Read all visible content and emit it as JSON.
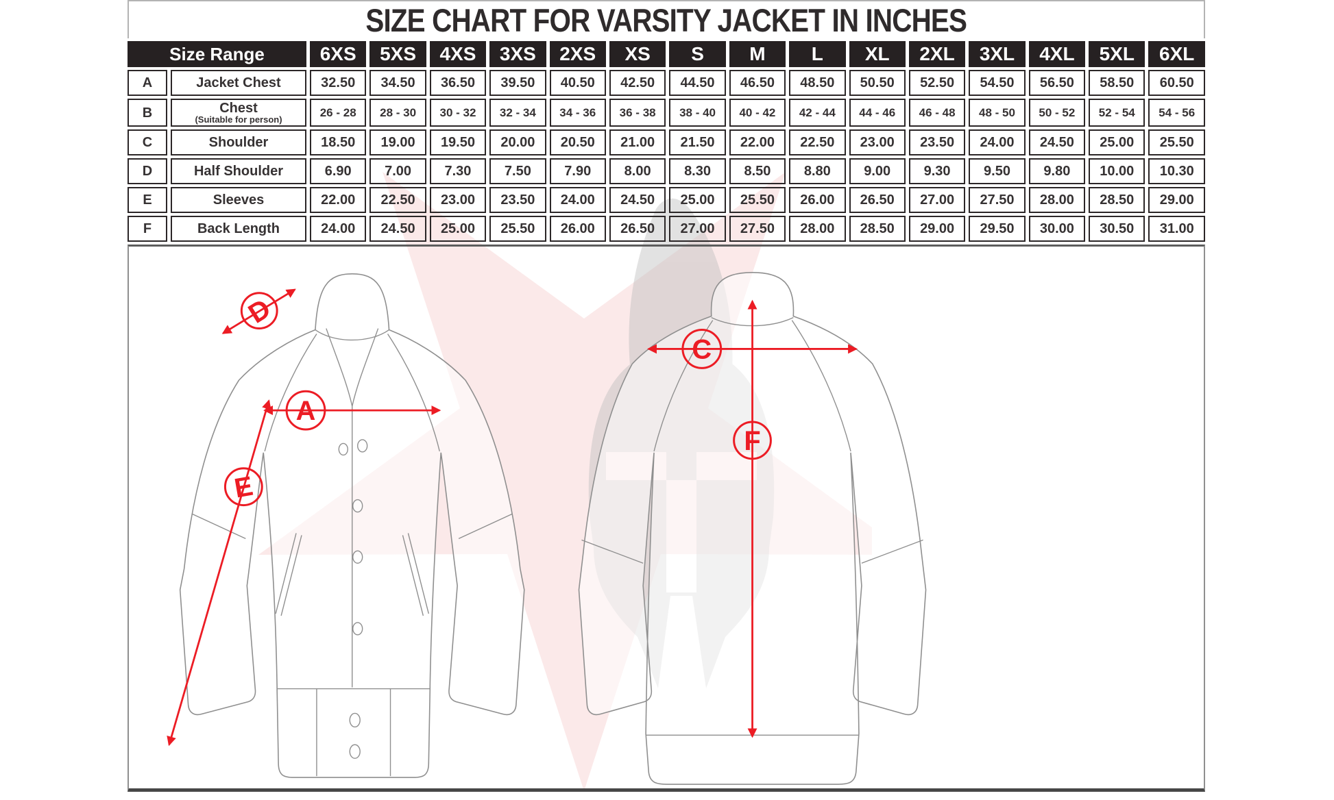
{
  "title": "SIZE CHART FOR VARSITY JACKET IN INCHES",
  "table": {
    "corner_header": "Size Range",
    "sizes": [
      "6XS",
      "5XS",
      "4XS",
      "3XS",
      "2XS",
      "XS",
      "S",
      "M",
      "L",
      "XL",
      "2XL",
      "3XL",
      "4XL",
      "5XL",
      "6XL"
    ],
    "rows": [
      {
        "letter": "A",
        "label": "Jacket Chest",
        "sublabel": "",
        "values": [
          "32.50",
          "34.50",
          "36.50",
          "39.50",
          "40.50",
          "42.50",
          "44.50",
          "46.50",
          "48.50",
          "50.50",
          "52.50",
          "54.50",
          "56.50",
          "58.50",
          "60.50"
        ]
      },
      {
        "letter": "B",
        "label": "Chest",
        "sublabel": "(Suitable for person)",
        "values": [
          "26 - 28",
          "28 - 30",
          "30 - 32",
          "32 - 34",
          "34 - 36",
          "36 - 38",
          "38 - 40",
          "40 - 42",
          "42 - 44",
          "44 - 46",
          "46 - 48",
          "48 - 50",
          "50 - 52",
          "52 - 54",
          "54 - 56"
        ]
      },
      {
        "letter": "C",
        "label": "Shoulder",
        "sublabel": "",
        "values": [
          "18.50",
          "19.00",
          "19.50",
          "20.00",
          "20.50",
          "21.00",
          "21.50",
          "22.00",
          "22.50",
          "23.00",
          "23.50",
          "24.00",
          "24.50",
          "25.00",
          "25.50"
        ]
      },
      {
        "letter": "D",
        "label": "Half Shoulder",
        "sublabel": "",
        "values": [
          "6.90",
          "7.00",
          "7.30",
          "7.50",
          "7.90",
          "8.00",
          "8.30",
          "8.50",
          "8.80",
          "9.00",
          "9.30",
          "9.50",
          "9.80",
          "10.00",
          "10.30"
        ]
      },
      {
        "letter": "E",
        "label": "Sleeves",
        "sublabel": "",
        "values": [
          "22.00",
          "22.50",
          "23.00",
          "23.50",
          "24.00",
          "24.50",
          "25.00",
          "25.50",
          "26.00",
          "26.50",
          "27.00",
          "27.50",
          "28.00",
          "28.50",
          "29.00"
        ]
      },
      {
        "letter": "F",
        "label": "Back Length",
        "sublabel": "",
        "values": [
          "24.00",
          "24.50",
          "25.00",
          "25.50",
          "26.00",
          "26.50",
          "27.00",
          "27.50",
          "28.00",
          "28.50",
          "29.00",
          "29.50",
          "30.00",
          "30.50",
          "31.00"
        ]
      }
    ]
  },
  "diagram": {
    "markers": {
      "jacket_chest": "A",
      "shoulder": "C",
      "half_shoulder": "D",
      "sleeves": "E",
      "back_length": "F"
    }
  },
  "colors": {
    "accent_red": "#ec1c24",
    "header_bg": "#262122",
    "watermark_pink": "#f6caca",
    "watermark_gray": "#bfbfbf"
  }
}
